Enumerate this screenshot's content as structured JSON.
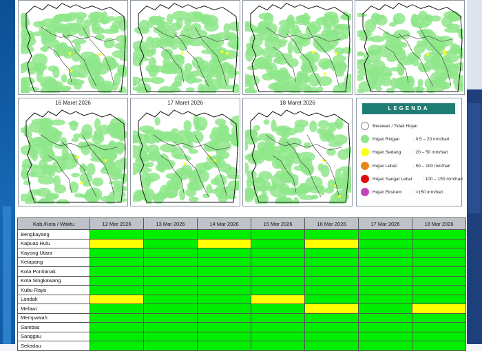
{
  "maps": {
    "top_row_dates": [
      "",
      "",
      "",
      ""
    ],
    "bottom_row": [
      {
        "date": "16 Maret 2026"
      },
      {
        "date": "17 Maret 2026"
      },
      {
        "date": "18 Maret 2026"
      }
    ]
  },
  "legend": {
    "title": "LEGENDA",
    "items": [
      {
        "name": "Berawan / Tidak Hujan",
        "range": "",
        "color": "#ffffff"
      },
      {
        "name": "Hujan Ringan",
        "range": ": 0.5 – 20 mm/hari",
        "color": "#8ee68a"
      },
      {
        "name": "Hujan Sedang",
        "range": ": 20 – 50 mm/hari",
        "color": "#ffff1a"
      },
      {
        "name": "Hujan Lebat",
        "range": ": 50 – 100 mm/hari",
        "color": "#e8861b"
      },
      {
        "name": "Hujan Sangat Lebat",
        "range": ": 100 – 150 mm/hari",
        "color": "#e20b0b"
      },
      {
        "name": "Hujan Ekstrem",
        "range": ": >150 mm/hari",
        "color": "#c843b5"
      }
    ]
  },
  "table": {
    "header_first": "Kab./Kota / Waktu",
    "dates": [
      "12 Mar 2026",
      "13 Mar 2026",
      "14 Mar 2026",
      "15 Mar 2026",
      "16 Mar 2026",
      "17 Mar 2026",
      "18 Mar 2026"
    ],
    "rows": [
      {
        "name": "Bengkayang",
        "cells": [
          "g",
          "g",
          "g",
          "g",
          "g",
          "g",
          "g"
        ]
      },
      {
        "name": "Kapuas Hulu",
        "cells": [
          "y",
          "g",
          "y",
          "g",
          "y",
          "g",
          "g"
        ]
      },
      {
        "name": "Kayong Utara",
        "cells": [
          "g",
          "g",
          "g",
          "g",
          "g",
          "g",
          "g"
        ]
      },
      {
        "name": "Ketapang",
        "cells": [
          "g",
          "g",
          "g",
          "g",
          "g",
          "g",
          "g"
        ]
      },
      {
        "name": "Kota Pontianak",
        "cells": [
          "g",
          "g",
          "g",
          "g",
          "g",
          "g",
          "g"
        ]
      },
      {
        "name": "Kota Singkawang",
        "cells": [
          "g",
          "g",
          "g",
          "g",
          "g",
          "g",
          "g"
        ]
      },
      {
        "name": "Kubu Raya",
        "cells": [
          "g",
          "g",
          "g",
          "g",
          "g",
          "g",
          "g"
        ]
      },
      {
        "name": "Landak",
        "cells": [
          "y",
          "g",
          "g",
          "y",
          "g",
          "g",
          "g"
        ]
      },
      {
        "name": "Melawi",
        "cells": [
          "g",
          "g",
          "g",
          "g",
          "y",
          "g",
          "y"
        ]
      },
      {
        "name": "Mempawah",
        "cells": [
          "g",
          "g",
          "g",
          "g",
          "g",
          "g",
          "g"
        ]
      },
      {
        "name": "Sambas",
        "cells": [
          "g",
          "g",
          "g",
          "g",
          "g",
          "g",
          "g"
        ]
      },
      {
        "name": "Sanggau",
        "cells": [
          "g",
          "g",
          "g",
          "g",
          "g",
          "g",
          "g"
        ]
      },
      {
        "name": "Sekadau",
        "cells": [
          "g",
          "g",
          "g",
          "g",
          "g",
          "g",
          "g"
        ]
      }
    ]
  },
  "colors": {
    "green": "#00ee00",
    "yellow": "#ffff00",
    "map_rain": "#8ee68a"
  }
}
